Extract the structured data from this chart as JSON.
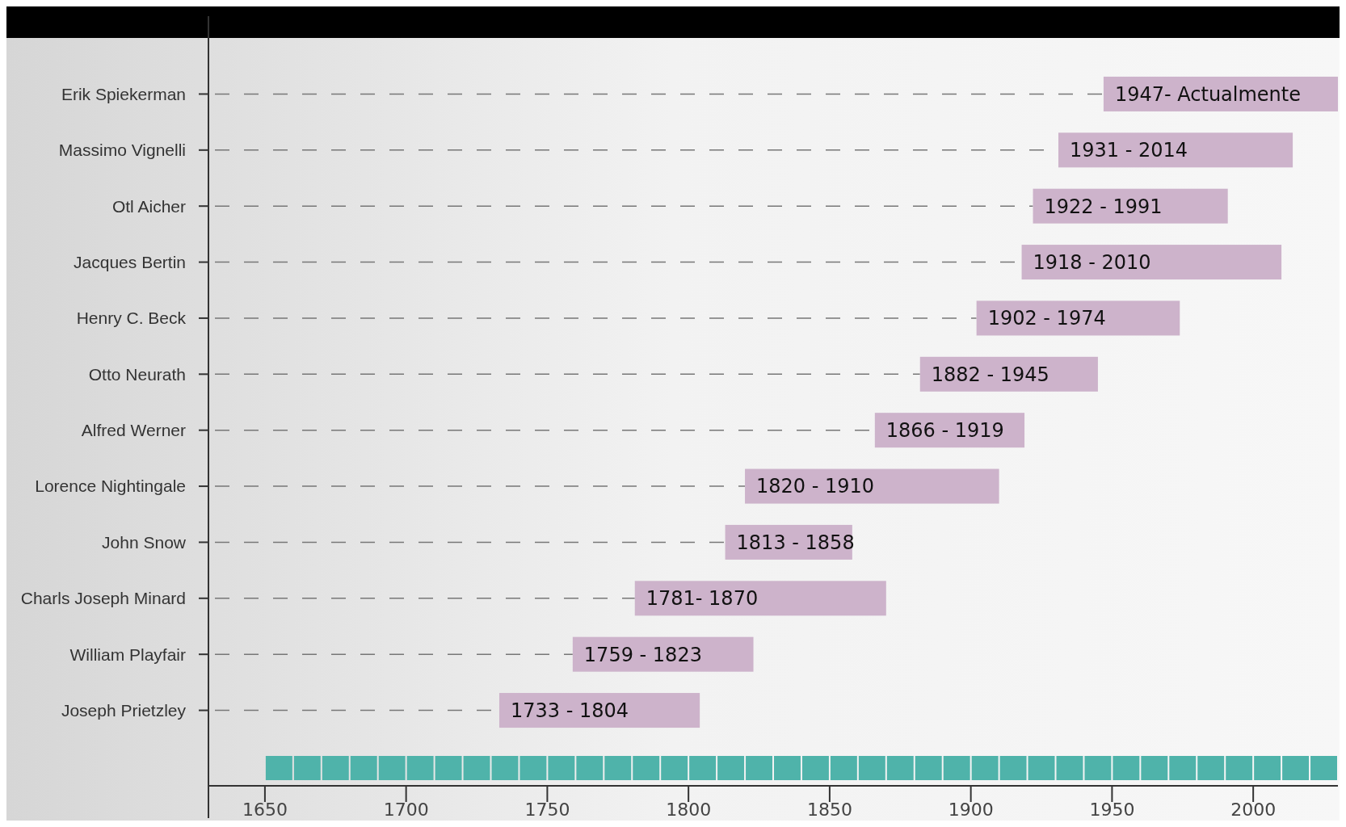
{
  "chart_data": {
    "type": "bar",
    "orientation": "horizontal",
    "categories": [
      "Erik Spiekerman",
      "Massimo Vignelli",
      "Otl Aicher",
      "Jacques Bertin",
      "Henry C. Beck",
      "Otto Neurath",
      "Alfred Werner",
      "Lorence Nightingale",
      "John Snow",
      "Charls Joseph Minard",
      "William Playfair",
      "Joseph Prietzley"
    ],
    "base": [
      1947,
      1931,
      1922,
      1918,
      1902,
      1882,
      1866,
      1820,
      1813,
      1781,
      1759,
      1733
    ],
    "values": [
      83,
      83,
      69,
      92,
      72,
      63,
      53,
      90,
      45,
      89,
      64,
      71
    ],
    "annotations": [
      {
        "text": "1947- Actualmente",
        "x": 1947,
        "y": "Erik Spiekerman"
      },
      {
        "text": "1931 - 2014",
        "x": 1931,
        "y": "Massimo Vignelli"
      },
      {
        "text": "1922 - 1991",
        "x": 1922,
        "y": "Otl Aicher"
      },
      {
        "text": "1918 - 2010",
        "x": 1918,
        "y": "Jacques Bertin"
      },
      {
        "text": "1902 - 1974",
        "x": 1902,
        "y": "Henry C. Beck"
      },
      {
        "text": "1882 - 1945",
        "x": 1882,
        "y": "Otto Neurath"
      },
      {
        "text": "1866 - 1919",
        "x": 1866,
        "y": "Alfred Werner"
      },
      {
        "text": "1820 - 1910",
        "x": 1820,
        "y": "Lorence Nightingale"
      },
      {
        "text": "1813 - 1858",
        "x": 1813,
        "y": "John Snow"
      },
      {
        "text": "1781- 1870",
        "x": 1781,
        "y": "Charls Joseph Minard"
      },
      {
        "text": "1759 - 1823",
        "x": 1759,
        "y": "William Playfair"
      },
      {
        "text": "1733 - 1804",
        "x": 1733,
        "y": "Joseph Prietzley"
      }
    ],
    "color": "#cdb3cb",
    "grid": "y",
    "xlim": [
      1630,
      2030
    ],
    "xticks": [
      1650,
      1700,
      1750,
      1800,
      1850,
      1900,
      1950,
      2000
    ]
  }
}
